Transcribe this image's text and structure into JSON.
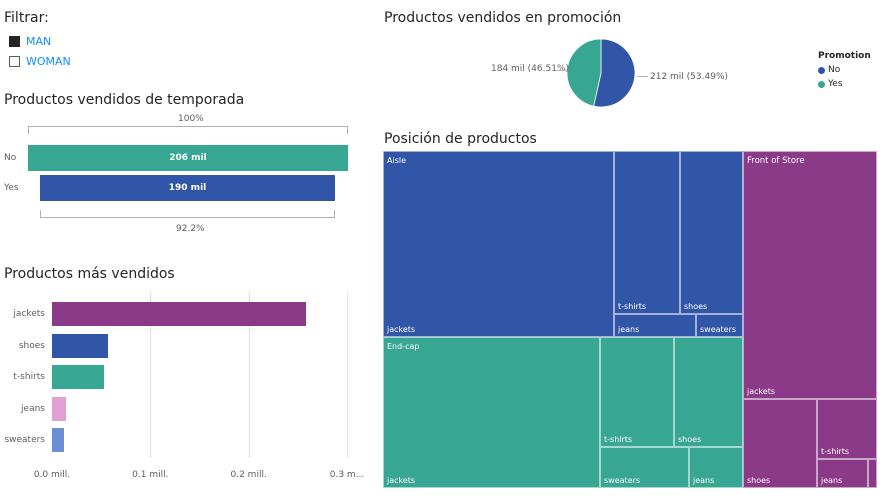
{
  "filter": {
    "title": "Filtrar:",
    "options": [
      {
        "label": "MAN",
        "checked": true
      },
      {
        "label": "WOMAN",
        "checked": false
      }
    ]
  },
  "season": {
    "title": "Productos vendidos de temporada",
    "top_pct": "100%",
    "bottom_pct": "92.2%",
    "rows": [
      {
        "label": "No",
        "value_label": "206 mil",
        "value": 206,
        "color": "#37a794"
      },
      {
        "label": "Yes",
        "value_label": "190 mil",
        "value": 190,
        "color": "#3156a8"
      }
    ]
  },
  "bestsellers": {
    "title": "Productos más vendidos",
    "ticks": [
      "0.0 mill.",
      "0.1 mill.",
      "0.2 mill.",
      "0.3 m..."
    ]
  },
  "promo": {
    "title": "Productos vendidos en promoción",
    "label_yes": "184 mil (46.51%)",
    "label_no": "212 mil (53.49%)",
    "legend_title": "Promotion",
    "legend": [
      {
        "label": "No",
        "color": "#3156a8"
      },
      {
        "label": "Yes",
        "color": "#37a794"
      }
    ],
    "slices": [
      {
        "name": "No",
        "value": 53.49,
        "color": "#3156a8"
      },
      {
        "name": "Yes",
        "value": 46.51,
        "color": "#37a794"
      }
    ]
  },
  "treemap": {
    "title": "Posición de productos",
    "groups": [
      {
        "name": "Aisle",
        "color": "#3156a8",
        "items": [
          "jackets",
          "t-shirts",
          "shoes",
          "jeans",
          "sweaters"
        ]
      },
      {
        "name": "End-cap",
        "color": "#37a794",
        "items": [
          "jackets",
          "t-shirts",
          "shoes",
          "sweaters",
          "jeans"
        ]
      },
      {
        "name": "Front of Store",
        "color": "#8b3a88",
        "items": [
          "jackets",
          "shoes",
          "t-shirts",
          "jeans"
        ]
      }
    ]
  },
  "chart_data": [
    {
      "type": "bar",
      "orientation": "horizontal",
      "title": "Productos vendidos de temporada",
      "categories": [
        "No",
        "Yes"
      ],
      "values": [
        206000,
        190000
      ],
      "data_labels": [
        "206 mil",
        "190 mil"
      ]
    },
    {
      "type": "bar",
      "orientation": "horizontal",
      "title": "Productos más vendidos",
      "categories": [
        "jackets",
        "shoes",
        "t-shirts",
        "jeans",
        "sweaters"
      ],
      "values": [
        258000,
        57000,
        53000,
        14000,
        12000
      ],
      "colors": [
        "#8b3a88",
        "#3156a8",
        "#37a794",
        "#e0a0d6",
        "#6b8fd4"
      ],
      "xlim": [
        0,
        0.3
      ],
      "x_unit": "mill."
    },
    {
      "type": "pie",
      "title": "Productos vendidos en promoción",
      "categories": [
        "No",
        "Yes"
      ],
      "values": [
        212000,
        184000
      ],
      "percent": [
        53.49,
        46.51
      ],
      "legend": "right"
    },
    {
      "type": "heatmap",
      "title": "Posición de productos"
    }
  ]
}
